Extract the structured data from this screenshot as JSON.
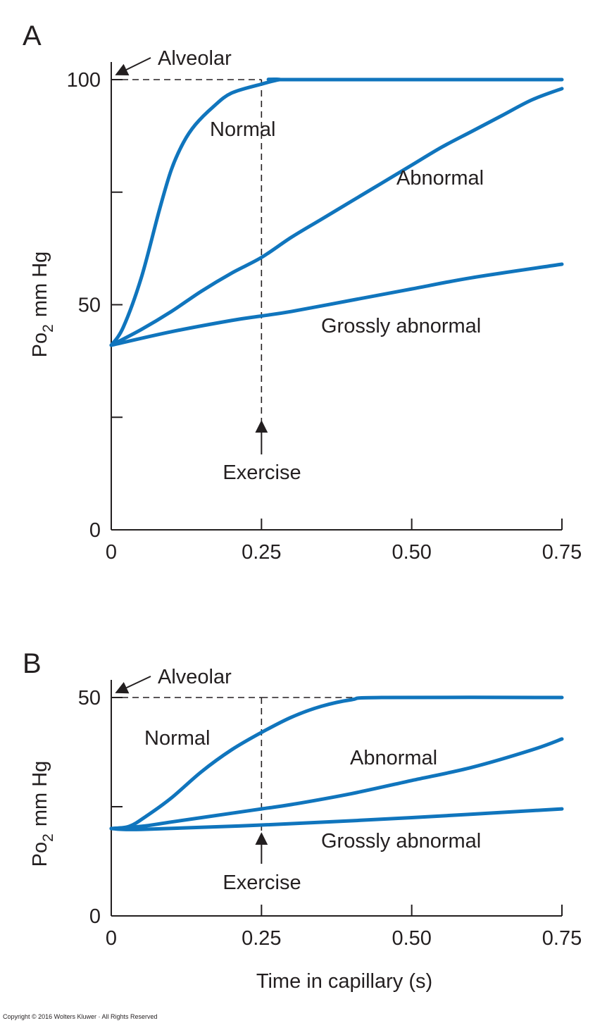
{
  "copyright": "Copyright © 2016 Wolters Kluwer · All Rights Reserved",
  "chart_data": [
    {
      "type": "line",
      "panel": "A",
      "ylabel": "Po2 mm Hg",
      "ylabel_main": "Po",
      "ylabel_sub": "2",
      "ylabel_unit": "mm Hg",
      "xlabel": "",
      "xlim": [
        0,
        0.75
      ],
      "ylim": [
        0,
        100
      ],
      "x_ticks": [
        "0",
        "0.25",
        "0.50",
        "0.75"
      ],
      "y_ticks": [
        "0",
        "50",
        "100"
      ],
      "reference_line": {
        "label": "Alveolar",
        "y": 100
      },
      "marker": {
        "label": "Exercise",
        "x": 0.25
      },
      "series": [
        {
          "name": "Normal",
          "x": [
            0,
            0.02,
            0.05,
            0.08,
            0.1,
            0.12,
            0.14,
            0.17,
            0.2,
            0.25,
            0.28,
            0.3,
            0.75
          ],
          "y": [
            41,
            45,
            56,
            71,
            80,
            86,
            90,
            94,
            97,
            99,
            100,
            100,
            100
          ]
        },
        {
          "name": "Abnormal",
          "x": [
            0,
            0.05,
            0.1,
            0.15,
            0.2,
            0.25,
            0.3,
            0.35,
            0.4,
            0.45,
            0.5,
            0.55,
            0.6,
            0.65,
            0.7,
            0.75
          ],
          "y": [
            41,
            44.5,
            48.5,
            53,
            57,
            60.5,
            65,
            69,
            73,
            77,
            81,
            85,
            88.5,
            92,
            95.5,
            98
          ]
        },
        {
          "name": "Grossly abnormal",
          "x": [
            0,
            0.1,
            0.2,
            0.25,
            0.3,
            0.4,
            0.5,
            0.6,
            0.75
          ],
          "y": [
            41,
            44,
            46.5,
            47.5,
            48.5,
            51,
            53.5,
            56,
            59
          ]
        }
      ]
    },
    {
      "type": "line",
      "panel": "B",
      "ylabel": "Po2 mm Hg",
      "ylabel_main": "Po",
      "ylabel_sub": "2",
      "ylabel_unit": "mm Hg",
      "xlabel": "Time in capillary (s)",
      "xlim": [
        0,
        0.75
      ],
      "ylim": [
        0,
        50
      ],
      "x_ticks": [
        "0",
        "0.25",
        "0.50",
        "0.75"
      ],
      "y_ticks": [
        "0",
        "50"
      ],
      "y_minor_ticks": [
        25
      ],
      "reference_line": {
        "label": "Alveolar",
        "y": 50
      },
      "marker": {
        "label": "Exercise",
        "x": 0.25
      },
      "series": [
        {
          "name": "Normal",
          "x": [
            0,
            0.03,
            0.06,
            0.1,
            0.15,
            0.2,
            0.25,
            0.3,
            0.35,
            0.4,
            0.45,
            0.75
          ],
          "y": [
            20,
            20.5,
            23,
            27,
            33,
            38,
            42,
            45.5,
            48,
            49.5,
            50,
            50
          ]
        },
        {
          "name": "Abnormal",
          "x": [
            0,
            0.05,
            0.1,
            0.2,
            0.25,
            0.3,
            0.4,
            0.5,
            0.6,
            0.7,
            0.75
          ],
          "y": [
            20,
            20.5,
            21.5,
            23.5,
            24.5,
            25.5,
            28,
            31,
            34,
            38,
            40.5
          ]
        },
        {
          "name": "Grossly abnormal",
          "x": [
            0,
            0.05,
            0.25,
            0.5,
            0.75
          ],
          "y": [
            20,
            19.8,
            20.8,
            22.5,
            24.5
          ]
        }
      ]
    }
  ]
}
